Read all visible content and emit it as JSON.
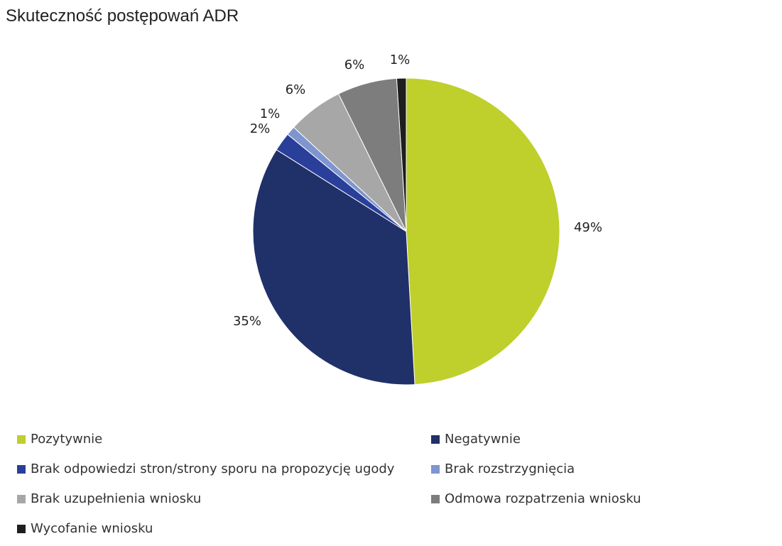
{
  "chart_data": {
    "type": "pie",
    "title": "Skuteczność postępowań ADR",
    "slices": [
      {
        "name": "Pozytywnie",
        "value": 49,
        "label": "49%",
        "color": "#bfcf2b"
      },
      {
        "name": "Negatywnie",
        "value": 35,
        "label": "35%",
        "color": "#203069"
      },
      {
        "name": "Brak odpowiedzi stron/strony sporu na propozycję ugody",
        "value": 2,
        "label": "2%",
        "color": "#2a3f9a"
      },
      {
        "name": "Brak rozstrzygnięcia",
        "value": 1,
        "label": "1%",
        "color": "#7e95cf"
      },
      {
        "name": "Brak uzupełnienia wniosku",
        "value": 6,
        "label": "6%",
        "color": "#a7a7a7"
      },
      {
        "name": "Odmowa rozpatrzenia wniosku",
        "value": 6,
        "label": "6%",
        "color": "#7d7d7d"
      },
      {
        "name": "Wycofanie wniosku",
        "value": 1,
        "label": "1%",
        "color": "#1e1e1e"
      }
    ],
    "slice_order_clockwise_from_top": [
      "Pozytywnie",
      "Negatywnie",
      "Brak odpowiedzi stron/strony sporu na propozycję ugody",
      "Brak rozstrzygnięcia",
      "Brak uzupełnienia wniosku",
      "Odmowa rozpatrzenia wniosku",
      "Wycofanie wniosku"
    ],
    "legend_placement": "bottom"
  }
}
